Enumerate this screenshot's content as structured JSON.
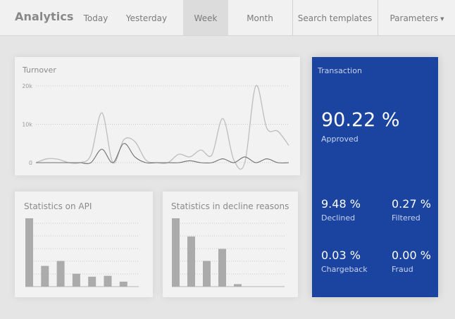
{
  "header": {
    "brand": "Analytics",
    "nav": {
      "today": "Today",
      "yesterday": "Yesterday",
      "week": "Week",
      "month": "Month"
    },
    "search_templates": "Search templates",
    "parameters": "Parameters",
    "caret_icon": "▼"
  },
  "turnover": {
    "title": "Turnover",
    "chart_data": {
      "type": "line",
      "ylim": [
        0,
        20000
      ],
      "yticks": [
        "20k",
        "10k",
        "0"
      ],
      "grid": true,
      "series": [
        {
          "values": [
            0,
            1000,
            900,
            0,
            0,
            2000,
            13000,
            0,
            6000,
            5500,
            700,
            0,
            0,
            2200,
            1500,
            3300,
            2000,
            11500,
            700,
            0,
            20000,
            9000,
            8200,
            4500
          ]
        },
        {
          "values": [
            0,
            0,
            0,
            0,
            0,
            0,
            3500,
            0,
            5000,
            1500,
            0,
            0,
            0,
            0,
            500,
            0,
            0,
            1000,
            0,
            1500,
            0,
            1000,
            0,
            0
          ]
        }
      ]
    }
  },
  "api_stats": {
    "title": "Statistics on API",
    "chart_data": {
      "type": "bar",
      "values": [
        16500,
        5000,
        6200,
        3100,
        2400,
        2600,
        1200
      ],
      "ylim": [
        0,
        17000
      ]
    }
  },
  "decline_stats": {
    "title": "Statistics in decline reasons",
    "chart_data": {
      "type": "bar",
      "values": [
        16500,
        12100,
        6200,
        9100,
        600
      ],
      "ylim": [
        0,
        17000
      ]
    }
  },
  "transaction": {
    "title": "Transaction",
    "approved_value": "90.22 %",
    "approved_label": "Approved",
    "declined_value": "9.48 %",
    "declined_label": "Declined",
    "filtered_value": "0.27 %",
    "filtered_label": "Filtered",
    "chargeback_value": "0.03 %",
    "chargeback_label": "Chargeback",
    "fraud_value": "0.00 %",
    "fraud_label": "Fraud",
    "colors": {
      "panel": "#1a44a0"
    }
  }
}
